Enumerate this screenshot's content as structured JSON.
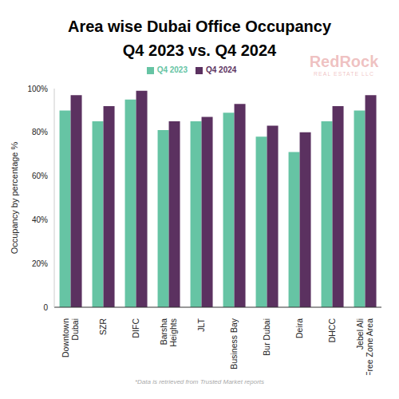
{
  "chart_data": {
    "type": "bar",
    "title": "Area wise Dubai Office Occupancy\nQ4 2023 vs. Q4 2024",
    "y_label": "Occupancy by percentage %",
    "footnote": "*Data is retrieved from Trusted Market reports",
    "logo": [
      "RedRock",
      "REAL ESTATE LLC"
    ],
    "categories": [
      "Downtown Dubai",
      "SZR",
      "DIFC",
      "Barsha Heights",
      "JLT",
      "Business Bay",
      "Bur Dubai",
      "Deira",
      "DHCC",
      "Jebel Ali Free Zone Area"
    ],
    "series": [
      {
        "name": "Q4 2023",
        "color": "#66c4a4",
        "values": [
          90,
          85,
          95,
          81,
          85,
          89,
          78,
          71,
          85,
          90
        ]
      },
      {
        "name": "Q4 2024",
        "color": "#5b3160",
        "values": [
          97,
          92,
          99,
          85,
          87,
          93,
          83,
          80,
          92,
          97
        ]
      }
    ],
    "ylim": [
      0,
      100
    ],
    "yticks": [
      0,
      {
        "value": 20,
        "label": "20%"
      },
      {
        "value": 40,
        "label": "40%"
      },
      {
        "value": 60,
        "label": "60%"
      },
      {
        "value": 80,
        "label": "80%"
      },
      {
        "value": 100,
        "label": "100%"
      }
    ],
    "grid": false,
    "legend": "top",
    "data_labels": false
  }
}
